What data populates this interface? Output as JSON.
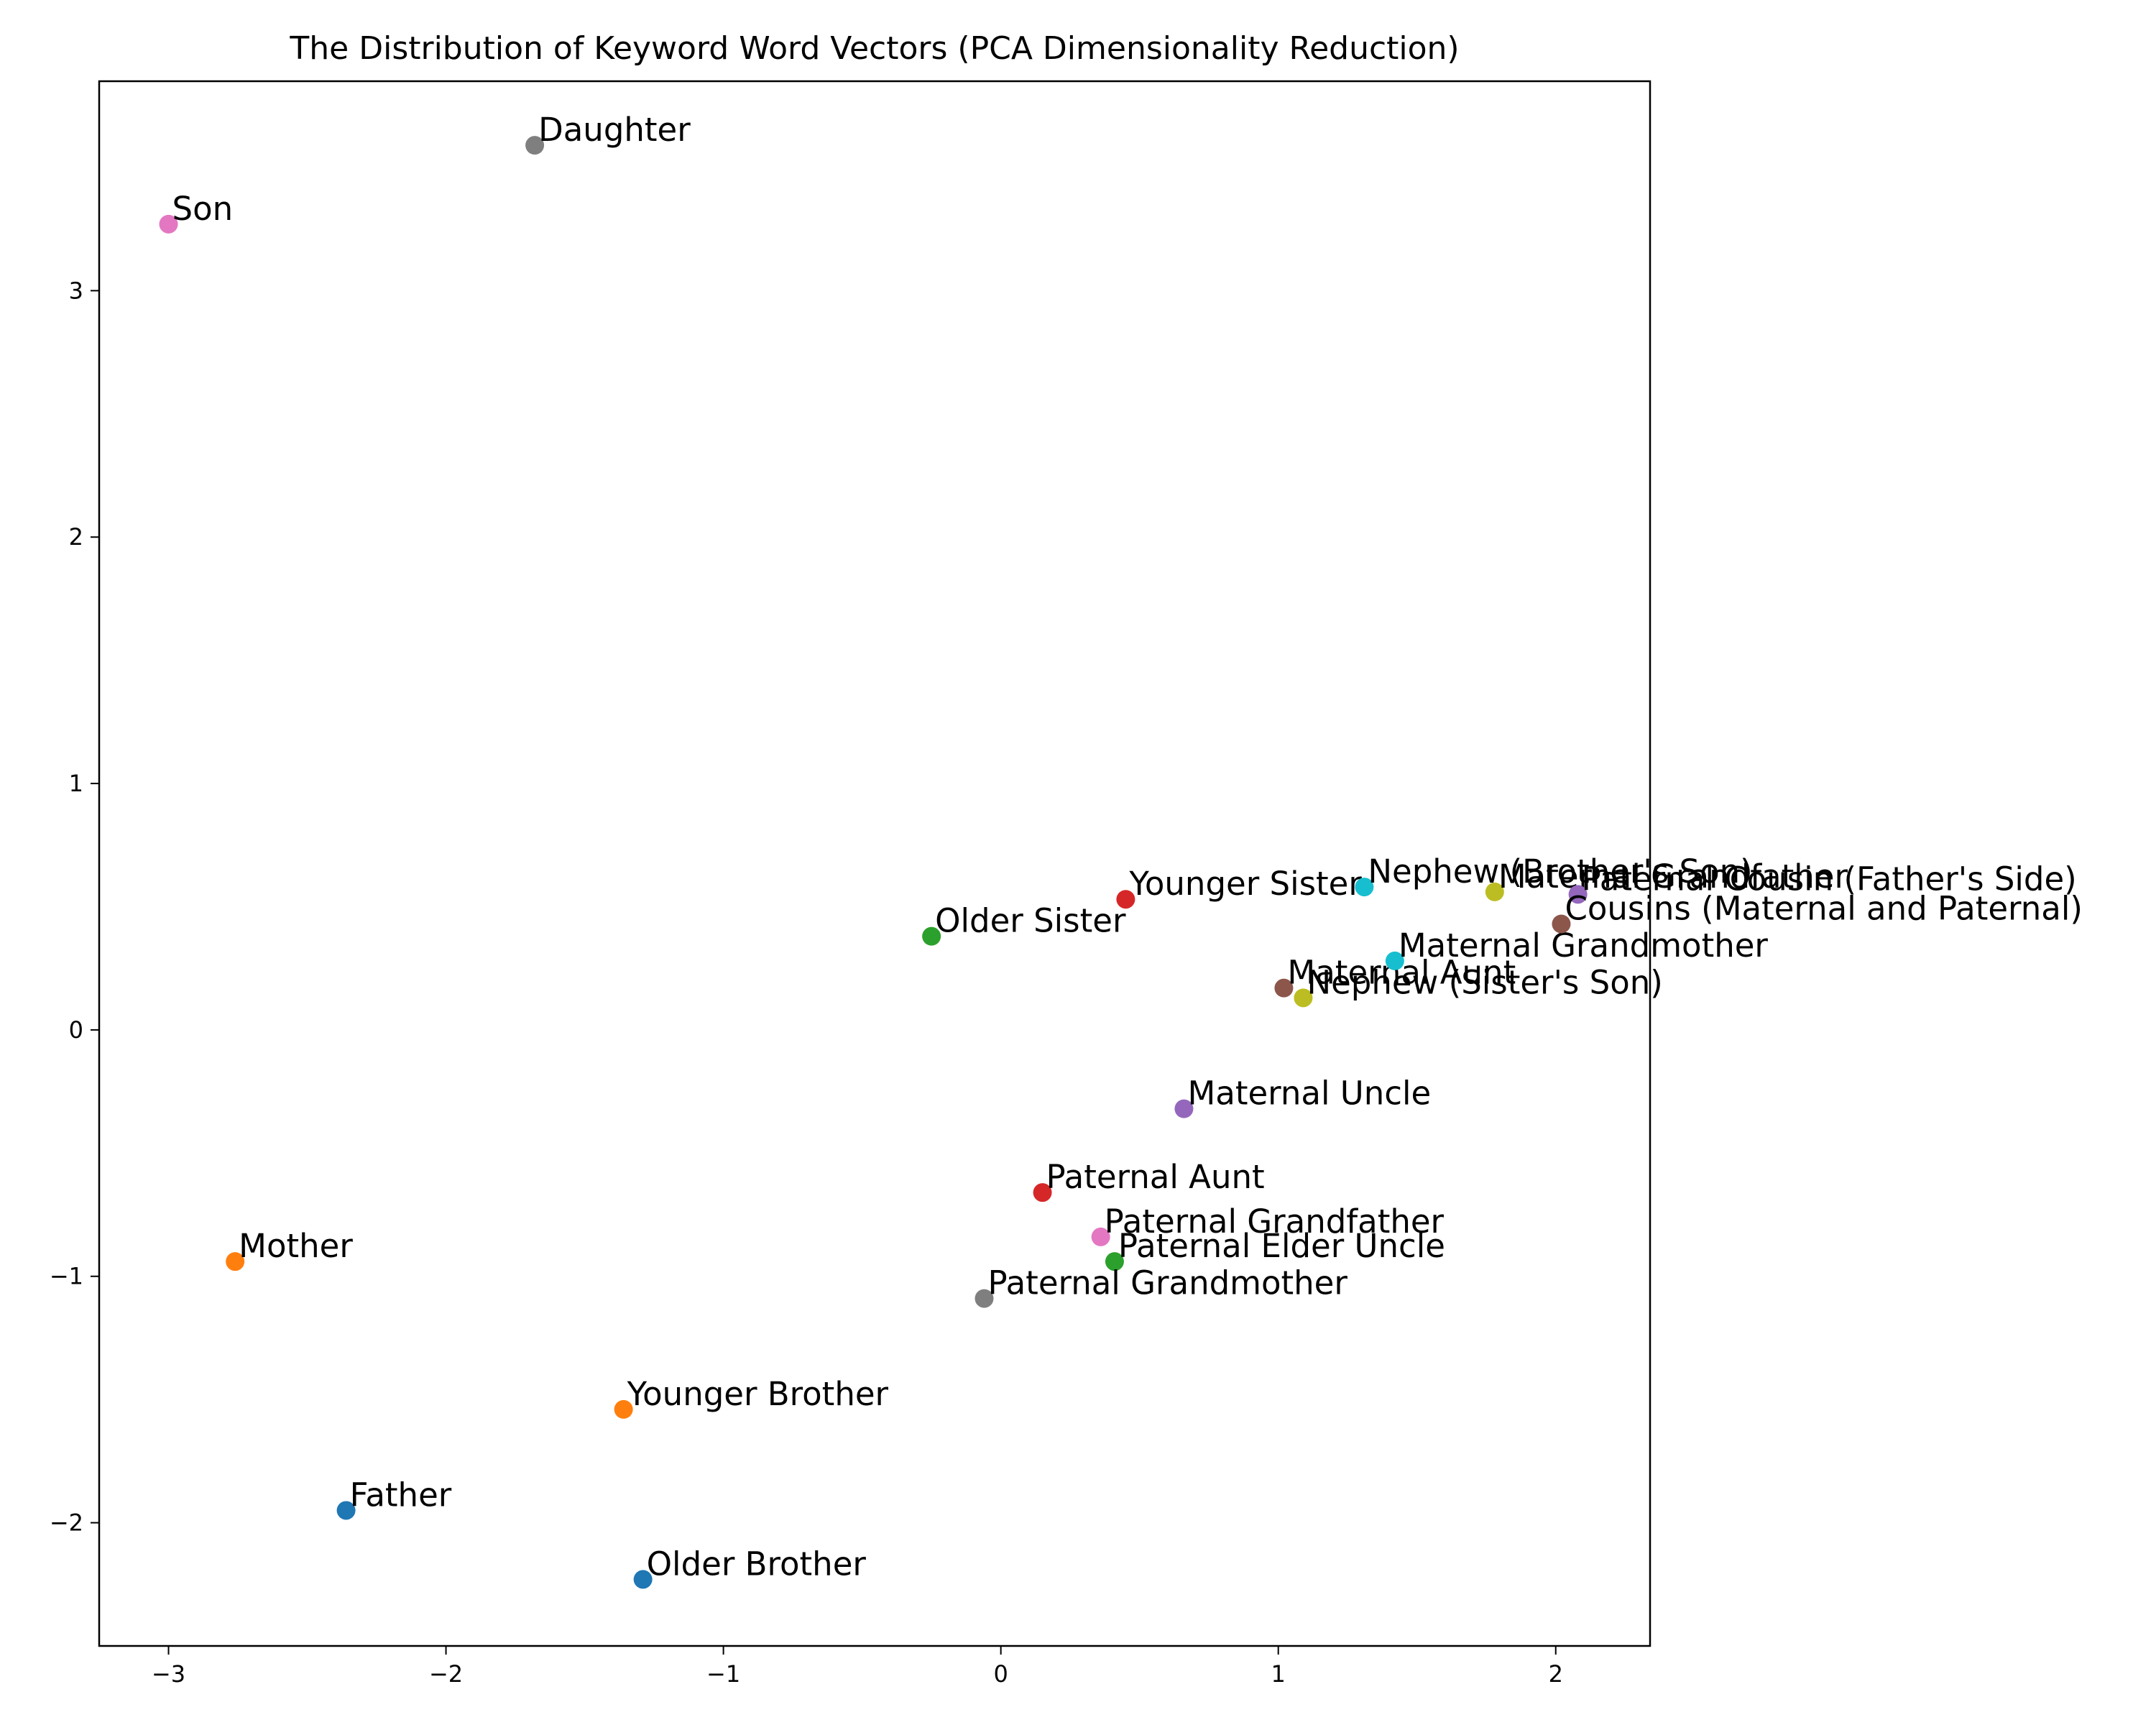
{
  "chart_data": {
    "type": "scatter",
    "title": "The Distribution of Keyword Word Vectors (PCA Dimensionality Reduction)",
    "xlabel": "",
    "ylabel": "",
    "xlim": [
      -3.25,
      2.34
    ],
    "ylim": [
      -2.5,
      3.85
    ],
    "xticks": [
      -3,
      -2,
      -1,
      0,
      1,
      2
    ],
    "yticks": [
      -2,
      -1,
      0,
      1,
      2,
      3
    ],
    "xtick_labels": [
      "−3",
      "−2",
      "−1",
      "0",
      "1",
      "2"
    ],
    "ytick_labels": [
      "−2",
      "−1",
      "0",
      "1",
      "2",
      "3"
    ],
    "grid": false,
    "points": [
      {
        "label": "Father",
        "x": -2.36,
        "y": -1.95,
        "color": "#1f77b4"
      },
      {
        "label": "Mother",
        "x": -2.76,
        "y": -0.94,
        "color": "#ff7f0e"
      },
      {
        "label": "Older Sister",
        "x": -0.25,
        "y": 0.38,
        "color": "#2ca02c"
      },
      {
        "label": "Younger Sister",
        "x": 0.45,
        "y": 0.53,
        "color": "#d62728"
      },
      {
        "label": "Maternal Uncle",
        "x": 0.66,
        "y": -0.32,
        "color": "#9467bd"
      },
      {
        "label": "Maternal Aunt",
        "x": 1.02,
        "y": 0.17,
        "color": "#8c564b"
      },
      {
        "label": "Son",
        "x": -3.0,
        "y": 3.27,
        "color": "#e377c2"
      },
      {
        "label": "Daughter",
        "x": -1.68,
        "y": 3.59,
        "color": "#7f7f7f"
      },
      {
        "label": "Maternal Grandfather",
        "x": 1.78,
        "y": 0.56,
        "color": "#bcbd22"
      },
      {
        "label": "Maternal Grandmother",
        "x": 1.42,
        "y": 0.28,
        "color": "#17becf"
      },
      {
        "label": "Older Brother",
        "x": -1.29,
        "y": -2.23,
        "color": "#1f77b4"
      },
      {
        "label": "Younger Brother",
        "x": -1.36,
        "y": -1.54,
        "color": "#ff7f0e"
      },
      {
        "label": "Paternal Elder Uncle",
        "x": 0.41,
        "y": -0.94,
        "color": "#2ca02c"
      },
      {
        "label": "Paternal Aunt",
        "x": 0.15,
        "y": -0.66,
        "color": "#d62728"
      },
      {
        "label": "Paternal Cousin (Father's Side)",
        "x": 2.08,
        "y": 0.55,
        "color": "#9467bd"
      },
      {
        "label": "Cousins (Maternal and Paternal)",
        "x": 2.02,
        "y": 0.43,
        "color": "#8c564b"
      },
      {
        "label": "Paternal Grandfather",
        "x": 0.36,
        "y": -0.84,
        "color": "#e377c2"
      },
      {
        "label": "Paternal Grandmother",
        "x": -0.06,
        "y": -1.09,
        "color": "#7f7f7f"
      },
      {
        "label": "Nephew (Sister's Son)",
        "x": 1.09,
        "y": 0.13,
        "color": "#bcbd22"
      },
      {
        "label": "Nephew (Brother's Son)",
        "x": 1.31,
        "y": 0.58,
        "color": "#17becf"
      }
    ]
  }
}
